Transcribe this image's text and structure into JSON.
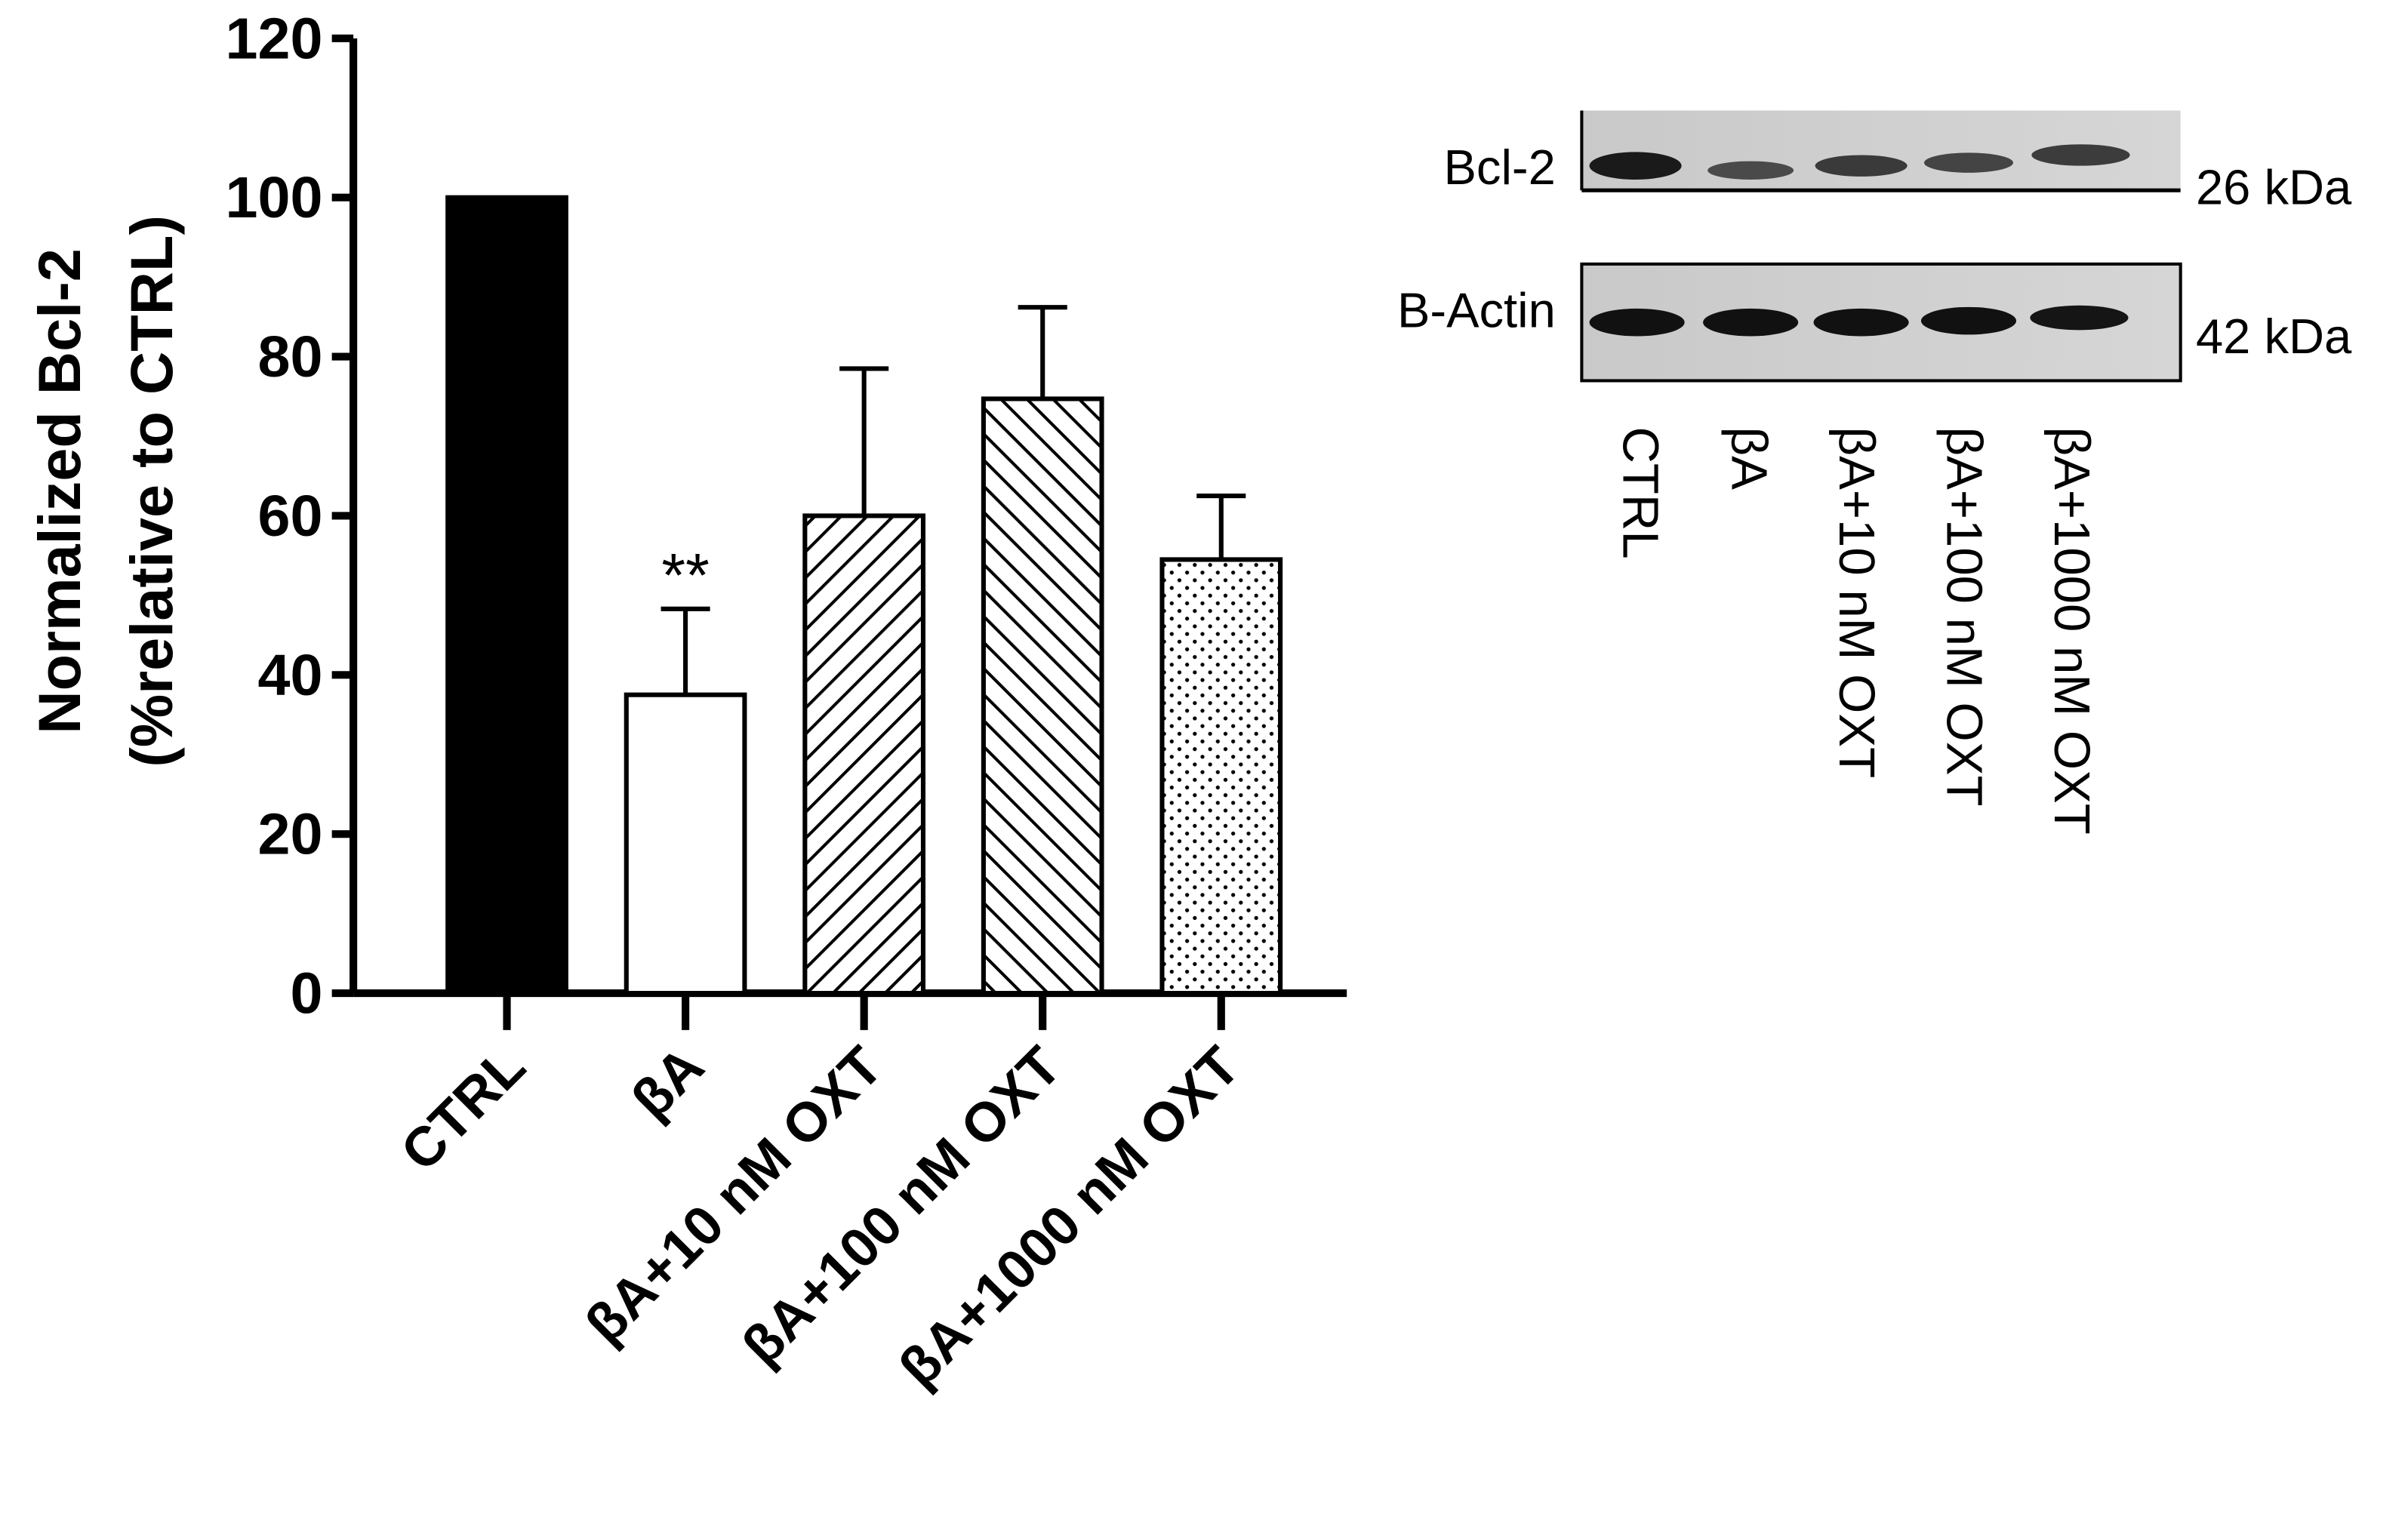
{
  "chart_data": {
    "type": "bar",
    "ylabel": [
      "Normalized Bcl-2",
      "(%relative to CTRL)"
    ],
    "categories": [
      "CTRL",
      "βA",
      "βA+10 nM OXT",
      "βA+100 nM OXT",
      "βA+1000 nM OXT"
    ],
    "values": [
      100,
      37.5,
      60,
      74.7,
      54.5
    ],
    "errors": [
      null,
      10.8,
      18.5,
      11.5,
      8
    ],
    "fills": [
      "solid-black",
      "white",
      "hatch-up",
      "hatch-down",
      "dots"
    ],
    "annotations": [
      {
        "text": "**",
        "category": "βA"
      }
    ],
    "ylim": [
      0,
      120
    ],
    "yticks": [
      0,
      20,
      40,
      60,
      80,
      100,
      120
    ]
  },
  "blot": {
    "rows": [
      {
        "label": "Bcl-2",
        "size": "26 kDa"
      },
      {
        "label": "B-Actin",
        "size": "42 kDa"
      }
    ],
    "lanes": [
      "CTRL",
      "βA",
      "βA+10 nM OXT",
      "βA+100 nM OXT",
      "βA+1000 nM OXT"
    ]
  }
}
